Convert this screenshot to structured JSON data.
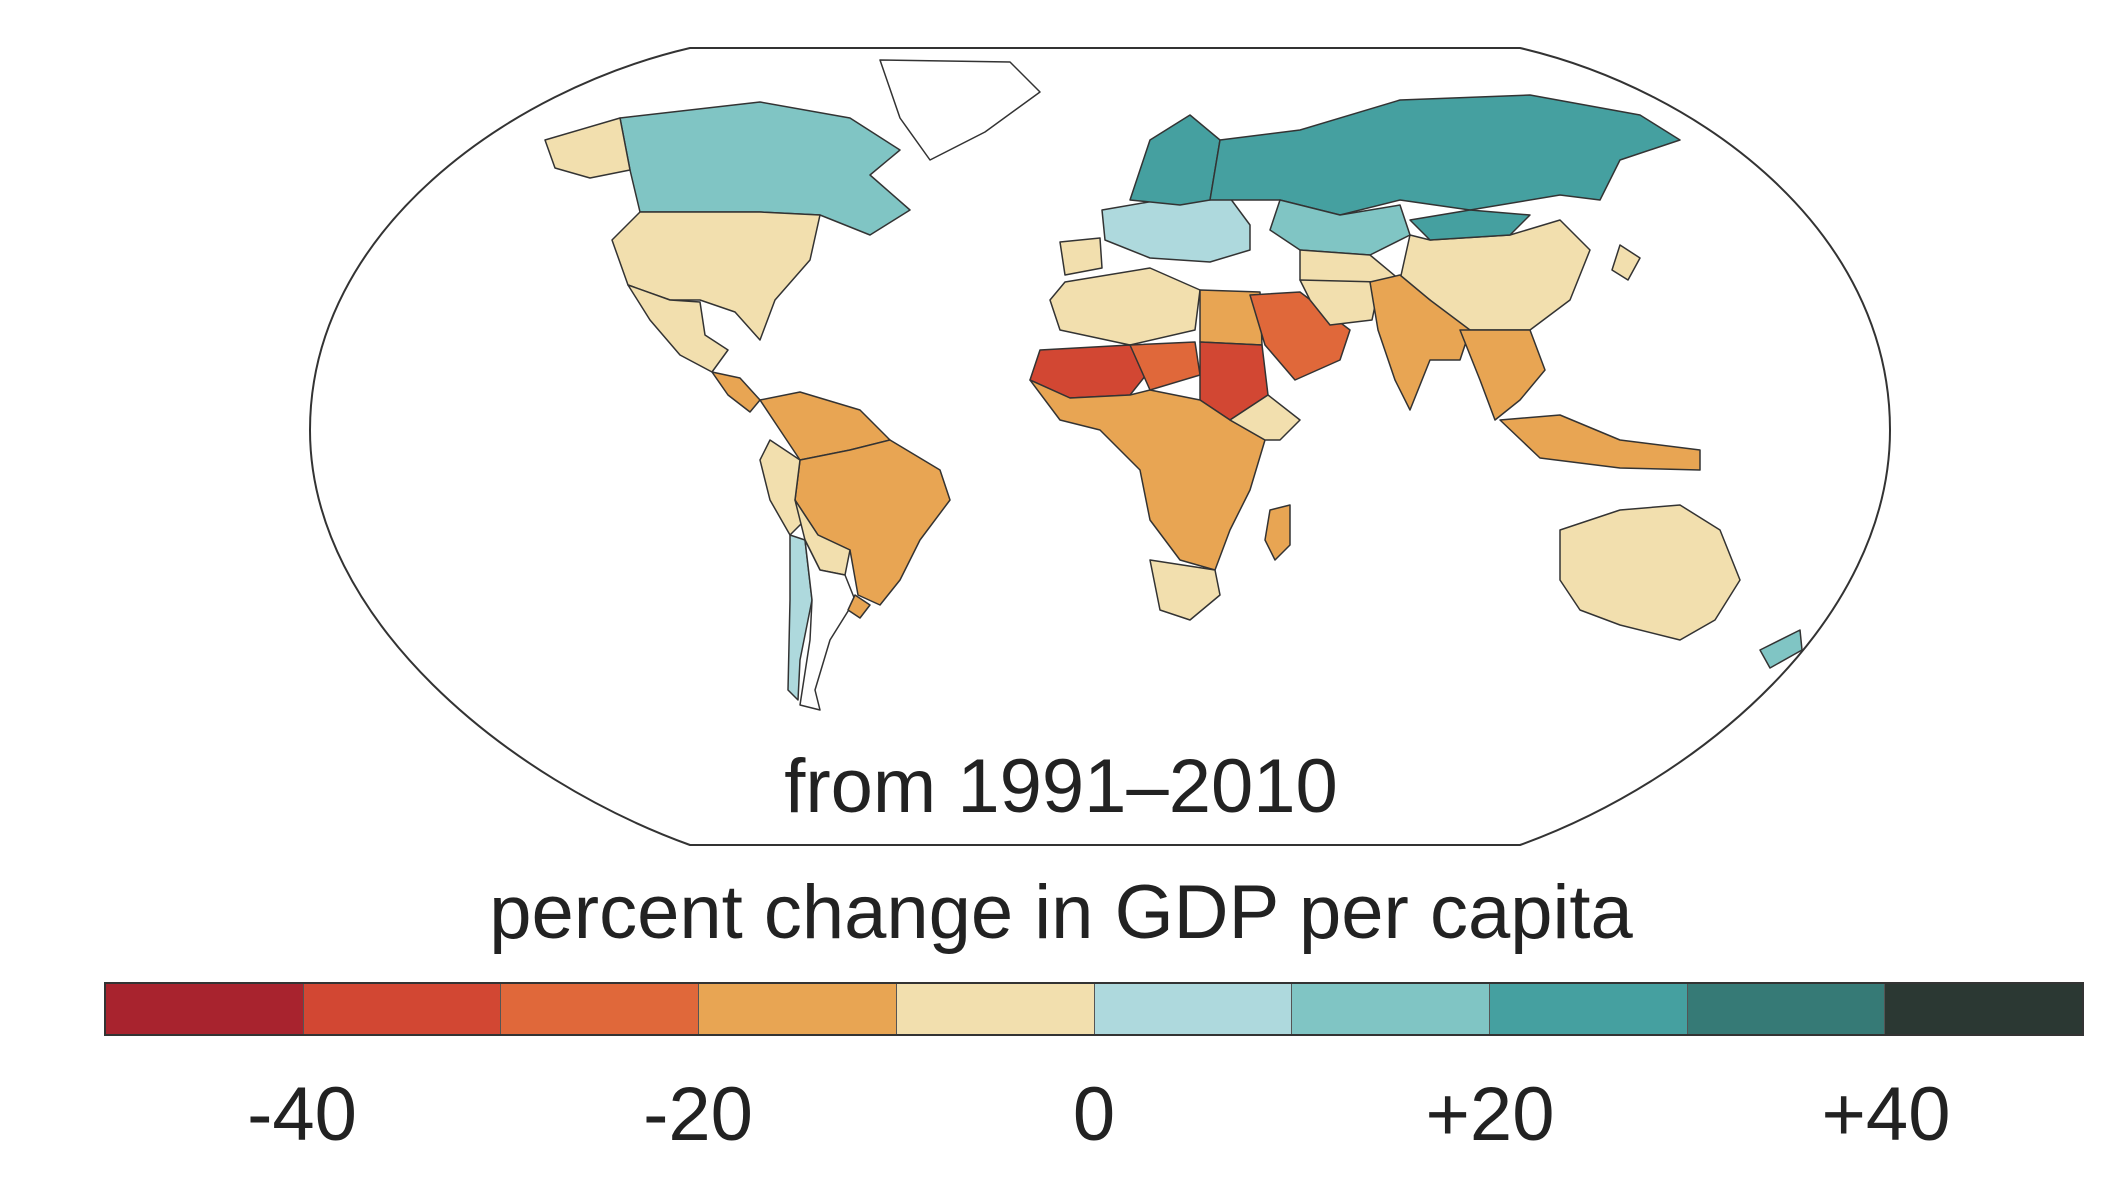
{
  "caption": "from 1991–2010",
  "legend": {
    "title": "percent change in GDP per capita",
    "bins": [
      {
        "range": "-50 to -40",
        "color": "#a8232e"
      },
      {
        "range": "-40 to -30",
        "color": "#d24733"
      },
      {
        "range": "-30 to -20",
        "color": "#e0683a"
      },
      {
        "range": "-20 to -10",
        "color": "#e8a553"
      },
      {
        "range": "-10 to 0",
        "color": "#f2dfae"
      },
      {
        "range": "0 to +10",
        "color": "#aed9dd"
      },
      {
        "range": "+10 to +20",
        "color": "#80c5c4"
      },
      {
        "range": "+20 to +30",
        "color": "#45a0a0"
      },
      {
        "range": "+30 to +40",
        "color": "#367a76"
      },
      {
        "range": "+40 to +50",
        "color": "#2b3833"
      }
    ],
    "ticks": [
      {
        "label": "-40",
        "value": -40
      },
      {
        "label": "-20",
        "value": -20
      },
      {
        "label": "0",
        "value": 0
      },
      {
        "label": "+20",
        "value": 20
      },
      {
        "label": "+40",
        "value": 40
      }
    ],
    "domain": [
      -50,
      50
    ]
  },
  "regions": [
    {
      "name": "Canada",
      "color": "#80c5c4"
    },
    {
      "name": "Greenland",
      "color": "#ffffff"
    },
    {
      "name": "Alaska",
      "color": "#f2dfae"
    },
    {
      "name": "United States",
      "color": "#f2dfae"
    },
    {
      "name": "Mexico",
      "color": "#f2dfae"
    },
    {
      "name": "Central America",
      "color": "#e8a553"
    },
    {
      "name": "Northern South America",
      "color": "#e8a553"
    },
    {
      "name": "Brazil",
      "color": "#e8a553"
    },
    {
      "name": "Peru",
      "color": "#f2dfae"
    },
    {
      "name": "Bolivia and Paraguay",
      "color": "#f2dfae"
    },
    {
      "name": "Chile",
      "color": "#aed9dd"
    },
    {
      "name": "Argentina",
      "color": "#ffffff"
    },
    {
      "name": "Uruguay",
      "color": "#e8a553"
    },
    {
      "name": "Europe",
      "color": "#aed9dd"
    },
    {
      "name": "Scandinavia",
      "color": "#45a0a0"
    },
    {
      "name": "Russia",
      "color": "#45a0a0"
    },
    {
      "name": "Kazakhstan",
      "color": "#80c5c4"
    },
    {
      "name": "Central Asia",
      "color": "#f2dfae"
    },
    {
      "name": "China",
      "color": "#f2dfae"
    },
    {
      "name": "Mongolia",
      "color": "#45a0a0"
    },
    {
      "name": "Iberia",
      "color": "#f2dfae"
    },
    {
      "name": "North Africa",
      "color": "#f2dfae"
    },
    {
      "name": "Egypt",
      "color": "#e8a553"
    },
    {
      "name": "Sahel West",
      "color": "#d24733"
    },
    {
      "name": "Sahel East",
      "color": "#e0683a"
    },
    {
      "name": "Sudan",
      "color": "#d24733"
    },
    {
      "name": "Arabian Peninsula",
      "color": "#e0683a"
    },
    {
      "name": "Iran",
      "color": "#f2dfae"
    },
    {
      "name": "India",
      "color": "#e8a553"
    },
    {
      "name": "Southeast Asia",
      "color": "#e8a553"
    },
    {
      "name": "Indonesia",
      "color": "#e8a553"
    },
    {
      "name": "Sub-Saharan Africa",
      "color": "#e8a553"
    },
    {
      "name": "Horn of Africa",
      "color": "#f2dfae"
    },
    {
      "name": "Southern Africa",
      "color": "#f2dfae"
    },
    {
      "name": "Madagascar",
      "color": "#e8a553"
    },
    {
      "name": "Australia",
      "color": "#f2dfae"
    },
    {
      "name": "New Zealand",
      "color": "#80c5c4"
    },
    {
      "name": "Japan",
      "color": "#f2dfae"
    }
  ]
}
